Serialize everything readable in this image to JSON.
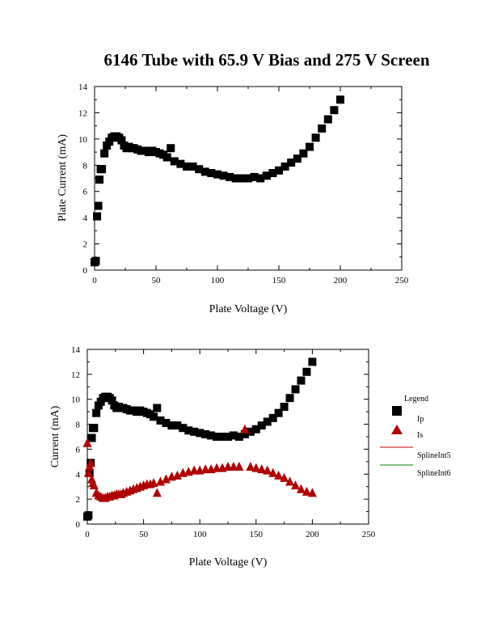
{
  "title": "6146 Tube with 65.9 V Bias and 275 V Screen",
  "colors": {
    "ip": "#000000",
    "is": "#b00000",
    "spline5": "#d00000",
    "spline6": "#008000",
    "axis": "#000000"
  },
  "legend": {
    "title": "Legend",
    "items": [
      "Ip",
      "Is",
      "SplineInt5",
      "SplineInt6"
    ]
  },
  "chart_data": [
    {
      "type": "scatter",
      "xlabel": "Plate Voltage (V)",
      "ylabel": "Plate Current (mA)",
      "xlim": [
        0,
        250
      ],
      "ylim": [
        0,
        14
      ],
      "xticks": [
        0,
        50,
        100,
        150,
        200,
        250
      ],
      "yticks": [
        0,
        2,
        4,
        6,
        8,
        10,
        12,
        14
      ],
      "series": [
        {
          "name": "Ip",
          "marker": "square",
          "x": [
            0,
            1,
            2,
            3,
            4,
            5,
            6,
            8,
            10,
            12,
            14,
            16,
            18,
            20,
            22,
            24,
            26,
            28,
            30,
            32,
            35,
            38,
            41,
            44,
            47,
            50,
            53,
            56,
            59,
            62,
            65,
            70,
            75,
            80,
            85,
            90,
            95,
            100,
            105,
            110,
            115,
            120,
            125,
            130,
            135,
            140,
            145,
            150,
            155,
            160,
            165,
            170,
            175,
            180,
            185,
            190,
            195,
            200
          ],
          "y": [
            0.6,
            0.7,
            4.1,
            4.9,
            6.9,
            7.7,
            7.7,
            8.9,
            9.5,
            9.8,
            10.1,
            10.2,
            10.2,
            10.1,
            9.9,
            9.5,
            9.3,
            9.4,
            9.3,
            9.3,
            9.2,
            9.1,
            9.1,
            9.0,
            9.1,
            9.0,
            8.9,
            8.8,
            8.6,
            9.3,
            8.3,
            8.1,
            7.9,
            7.9,
            7.7,
            7.5,
            7.4,
            7.3,
            7.2,
            7.1,
            7.0,
            7.0,
            7.0,
            7.1,
            7.0,
            7.2,
            7.4,
            7.6,
            7.9,
            8.2,
            8.5,
            8.9,
            9.4,
            10.1,
            10.8,
            11.5,
            12.2,
            13.0
          ]
        }
      ]
    },
    {
      "type": "scatter",
      "xlabel": "Plate Voltage (V)",
      "ylabel": "Current (mA)",
      "xlim": [
        0,
        250
      ],
      "ylim": [
        0,
        14
      ],
      "xticks": [
        0,
        50,
        100,
        150,
        200,
        250
      ],
      "yticks": [
        0,
        2,
        4,
        6,
        8,
        10,
        12,
        14
      ],
      "series": [
        {
          "name": "Ip",
          "marker": "square",
          "x": [
            0,
            1,
            2,
            3,
            4,
            5,
            6,
            8,
            10,
            12,
            14,
            16,
            18,
            20,
            22,
            24,
            26,
            28,
            30,
            32,
            35,
            38,
            41,
            44,
            47,
            50,
            53,
            56,
            59,
            62,
            65,
            70,
            75,
            80,
            85,
            90,
            95,
            100,
            105,
            110,
            115,
            120,
            125,
            130,
            135,
            140,
            145,
            150,
            155,
            160,
            165,
            170,
            175,
            180,
            185,
            190,
            195,
            200
          ],
          "y": [
            0.6,
            0.7,
            4.1,
            4.9,
            6.9,
            7.7,
            7.7,
            8.9,
            9.5,
            9.8,
            10.1,
            10.2,
            10.2,
            10.1,
            9.9,
            9.5,
            9.3,
            9.4,
            9.3,
            9.3,
            9.2,
            9.1,
            9.1,
            9.0,
            9.1,
            9.0,
            8.9,
            8.8,
            8.6,
            9.3,
            8.3,
            8.1,
            7.9,
            7.9,
            7.7,
            7.5,
            7.4,
            7.3,
            7.2,
            7.1,
            7.0,
            7.0,
            7.0,
            7.1,
            7.0,
            7.2,
            7.4,
            7.6,
            7.9,
            8.2,
            8.5,
            8.9,
            9.4,
            10.1,
            10.8,
            11.5,
            12.2,
            13.0
          ]
        },
        {
          "name": "Is",
          "marker": "triangle",
          "x": [
            0,
            1,
            2,
            3,
            4,
            5,
            6,
            8,
            10,
            12,
            14,
            16,
            18,
            20,
            22,
            24,
            26,
            28,
            30,
            32,
            35,
            38,
            41,
            44,
            47,
            50,
            53,
            56,
            59,
            62,
            65,
            70,
            75,
            80,
            85,
            90,
            95,
            100,
            105,
            110,
            115,
            120,
            125,
            130,
            135,
            140,
            145,
            150,
            155,
            160,
            165,
            170,
            175,
            180,
            185,
            190,
            195,
            200
          ],
          "y": [
            6.5,
            4.1,
            4.6,
            4.9,
            3.6,
            3.3,
            3.1,
            2.5,
            2.3,
            2.2,
            2.1,
            2.1,
            2.2,
            2.2,
            2.3,
            2.3,
            2.4,
            2.4,
            2.4,
            2.5,
            2.6,
            2.7,
            2.8,
            2.9,
            3.0,
            3.1,
            3.2,
            3.2,
            3.3,
            2.5,
            3.4,
            3.6,
            3.8,
            3.9,
            4.1,
            4.2,
            4.3,
            4.3,
            4.4,
            4.4,
            4.5,
            4.5,
            4.6,
            4.6,
            4.6,
            7.6,
            4.6,
            4.5,
            4.4,
            4.3,
            4.1,
            3.9,
            3.7,
            3.4,
            3.1,
            2.8,
            2.6,
            2.5
          ]
        }
      ]
    }
  ]
}
